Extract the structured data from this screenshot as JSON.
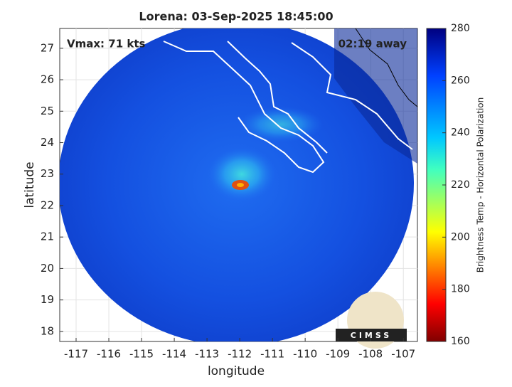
{
  "title": "Lorena: 03-Sep-2025 18:45:00",
  "annotations": {
    "vmax": "Vmax: 71 kts",
    "eta": "02:19 away"
  },
  "map": {
    "xlabel": "longitude",
    "ylabel": "latitude",
    "xlim": [
      -117.5,
      -106.57
    ],
    "ylim": [
      17.68,
      27.63
    ],
    "xticks": [
      -117,
      -116,
      -115,
      -114,
      -113,
      -112,
      -111,
      -110,
      -109,
      -108,
      -107
    ],
    "yticks": [
      18,
      19,
      20,
      21,
      22,
      23,
      24,
      25,
      26,
      27
    ]
  },
  "colorbar": {
    "label": "Brightness Temp - Horizontal Polarization",
    "lim": [
      160,
      280
    ],
    "ticks": [
      160,
      180,
      200,
      220,
      240,
      260,
      280
    ]
  },
  "logo": "CIMSS"
}
